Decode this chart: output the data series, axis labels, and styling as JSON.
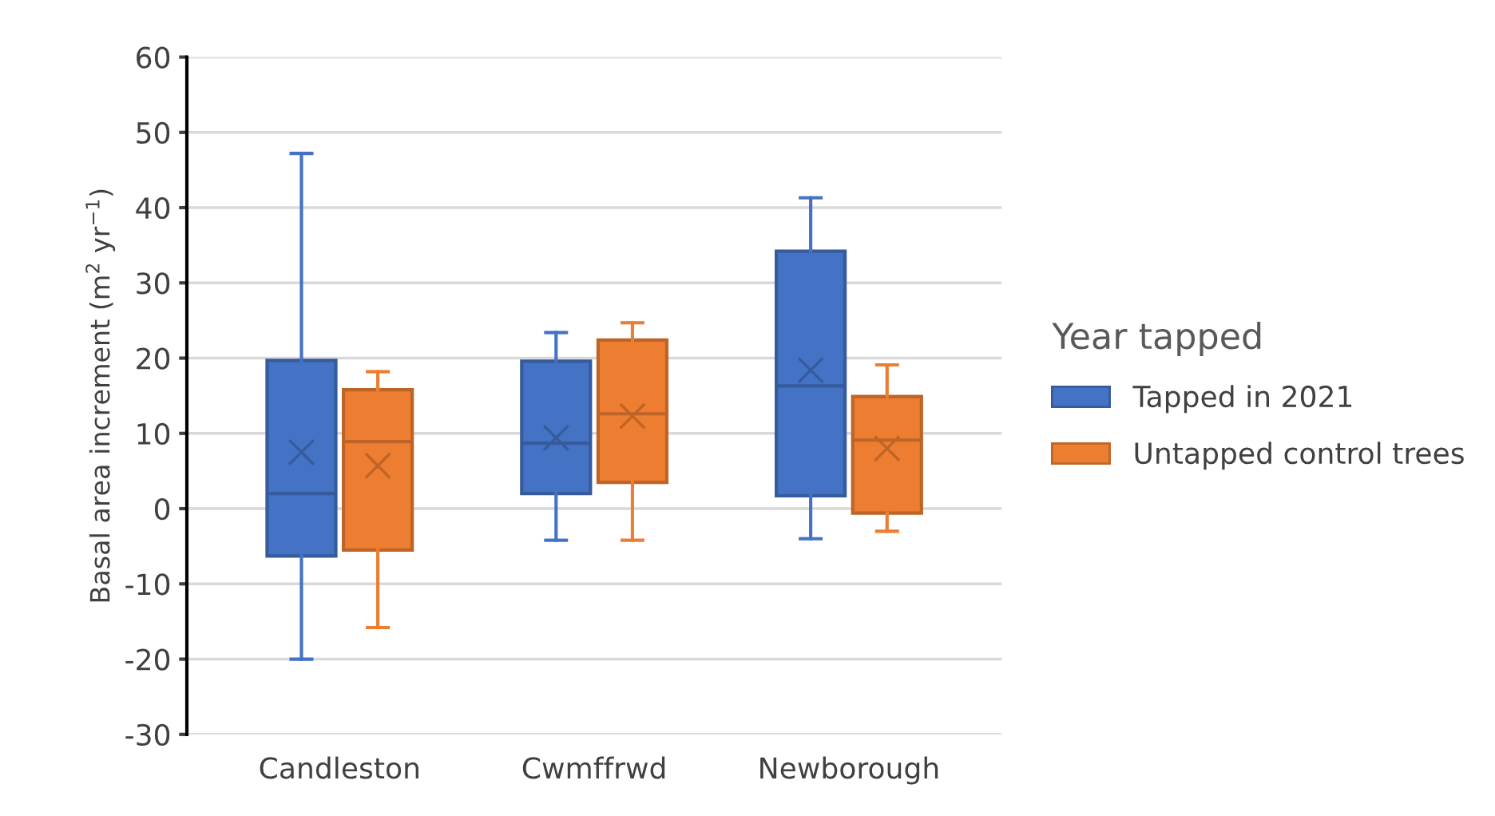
{
  "chart_data": {
    "type": "box",
    "ylabel": "Basal area increment (m$^{2}$ yr$^{−1}$)",
    "legend_title": "Year tapped",
    "categories": [
      "Candleston",
      "Cwmffrwd",
      "Newborough"
    ],
    "ylim": [
      -30,
      60
    ],
    "yticks": [
      -30,
      -20,
      -10,
      0,
      10,
      20,
      30,
      40,
      50,
      60
    ],
    "grid": "y",
    "legend": "right",
    "series": [
      {
        "name": "Tapped in 2021",
        "color": "#4472c4",
        "boxes": [
          {
            "low": -20,
            "q1": -6.3,
            "median": 2.0,
            "q3": 19.7,
            "high": 47.2,
            "mean": 7.5
          },
          {
            "low": -4.2,
            "q1": 2.0,
            "median": 8.7,
            "q3": 19.6,
            "high": 23.4,
            "mean": 9.4
          },
          {
            "low": -4.0,
            "q1": 1.7,
            "median": 16.3,
            "q3": 34.2,
            "high": 41.3,
            "mean": 18.4
          }
        ]
      },
      {
        "name": "Untapped control trees",
        "color": "#ed7d31",
        "boxes": [
          {
            "low": -15.8,
            "q1": -5.5,
            "median": 8.9,
            "q3": 15.8,
            "high": 18.2,
            "mean": 5.7
          },
          {
            "low": -4.2,
            "q1": 3.5,
            "median": 12.6,
            "q3": 22.4,
            "high": 24.7,
            "mean": 12.3
          },
          {
            "low": -3.0,
            "q1": -0.6,
            "median": 9.1,
            "q3": 14.9,
            "high": 19.1,
            "mean": 8.0
          }
        ]
      }
    ]
  }
}
